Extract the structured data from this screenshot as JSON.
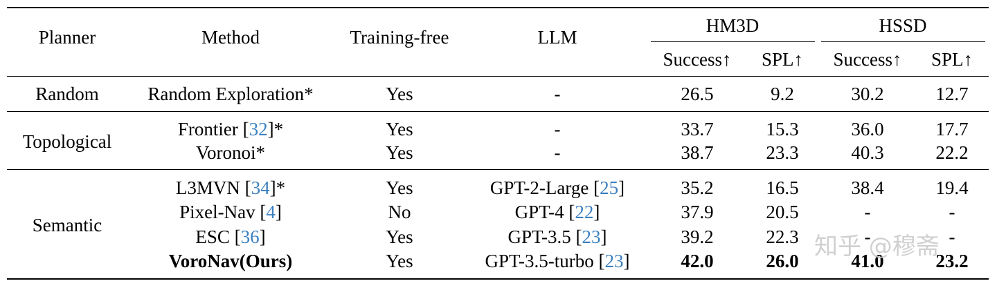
{
  "table": {
    "header": {
      "planner": "Planner",
      "method": "Method",
      "training_free": "Training-free",
      "llm": "LLM",
      "group1": "HM3D",
      "group2": "HSSD",
      "success": "Success↑",
      "spl": "SPL↑"
    },
    "rows": [
      {
        "planner": "Random",
        "method": "Random Exploration",
        "cite": "",
        "star": "*",
        "training_free": "Yes",
        "llm": "-",
        "llm_cite": "",
        "hm_success": "26.5",
        "hm_spl": "9.2",
        "hs_success": "30.2",
        "hs_spl": "12.7"
      },
      {
        "planner": "",
        "method": "Frontier [",
        "cite": "32",
        "star": "]*",
        "training_free": "Yes",
        "llm": "-",
        "llm_cite": "",
        "hm_success": "33.7",
        "hm_spl": "15.3",
        "hs_success": "36.0",
        "hs_spl": "17.7"
      },
      {
        "planner": "",
        "method": "Voronoi",
        "cite": "",
        "star": "*",
        "training_free": "Yes",
        "llm": "-",
        "llm_cite": "",
        "hm_success": "38.7",
        "hm_spl": "23.3",
        "hs_success": "40.3",
        "hs_spl": "22.2"
      },
      {
        "planner": "",
        "method": "L3MVN [",
        "cite": "34",
        "star": "]*",
        "training_free": "Yes",
        "llm": "GPT-2-Large [",
        "llm_cite": "25",
        "hm_success": "35.2",
        "hm_spl": "16.5",
        "hs_success": "38.4",
        "hs_spl": "19.4"
      },
      {
        "planner": "",
        "method": "Pixel-Nav [",
        "cite": "4",
        "star": "]",
        "training_free": "No",
        "llm": "GPT-4 [",
        "llm_cite": "22",
        "hm_success": "37.9",
        "hm_spl": "20.5",
        "hs_success": "-",
        "hs_spl": "-"
      },
      {
        "planner": "",
        "method": "ESC [",
        "cite": "36",
        "star": "]",
        "training_free": "Yes",
        "llm": "GPT-3.5 [",
        "llm_cite": "23",
        "hm_success": "39.2",
        "hm_spl": "22.3",
        "hs_success": "-",
        "hs_spl": "-"
      },
      {
        "planner": "",
        "method": "VoroNav(Ours)",
        "cite": "",
        "star": "",
        "training_free": "Yes",
        "llm": "GPT-3.5-turbo [",
        "llm_cite": "23",
        "hm_success": "42.0",
        "hm_spl": "26.0",
        "hs_success": "41.0",
        "hs_spl": "23.2"
      }
    ],
    "planner_groups": [
      "Topological",
      "Semantic"
    ],
    "llm_close": "]"
  },
  "watermark": "知乎 @穆斋"
}
